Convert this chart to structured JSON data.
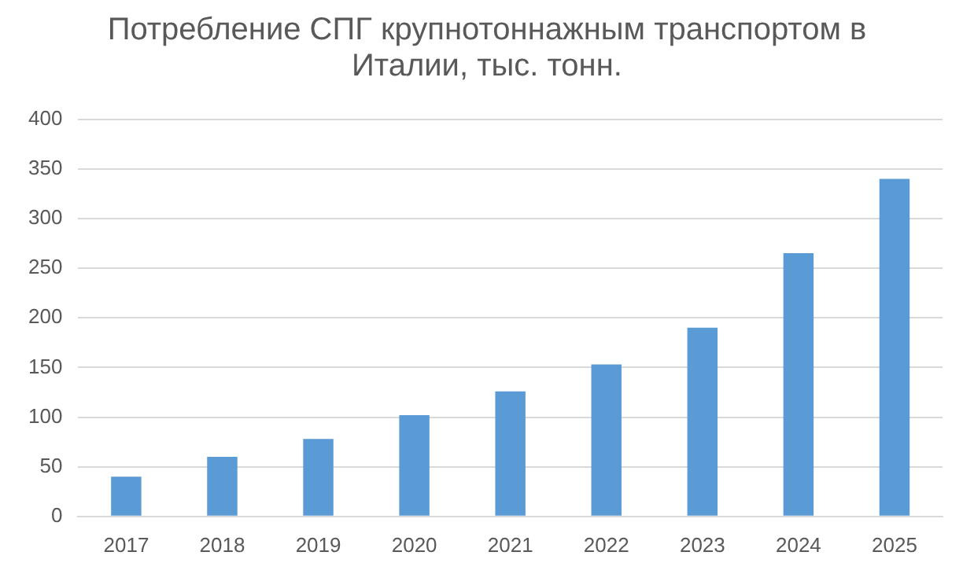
{
  "chart_data": {
    "type": "bar",
    "title": "Потребление СПГ крупнотоннажным транспортом в Италии, тыс. тонн.",
    "categories": [
      "2017",
      "2018",
      "2019",
      "2020",
      "2021",
      "2022",
      "2023",
      "2024",
      "2025"
    ],
    "values": [
      40,
      60,
      78,
      102,
      126,
      153,
      190,
      265,
      340
    ],
    "color": "#5b9bd5",
    "ylim": [
      0,
      400
    ],
    "yticks": [
      0,
      50,
      100,
      150,
      200,
      250,
      300,
      350,
      400
    ],
    "grid": "y",
    "legend": false
  }
}
